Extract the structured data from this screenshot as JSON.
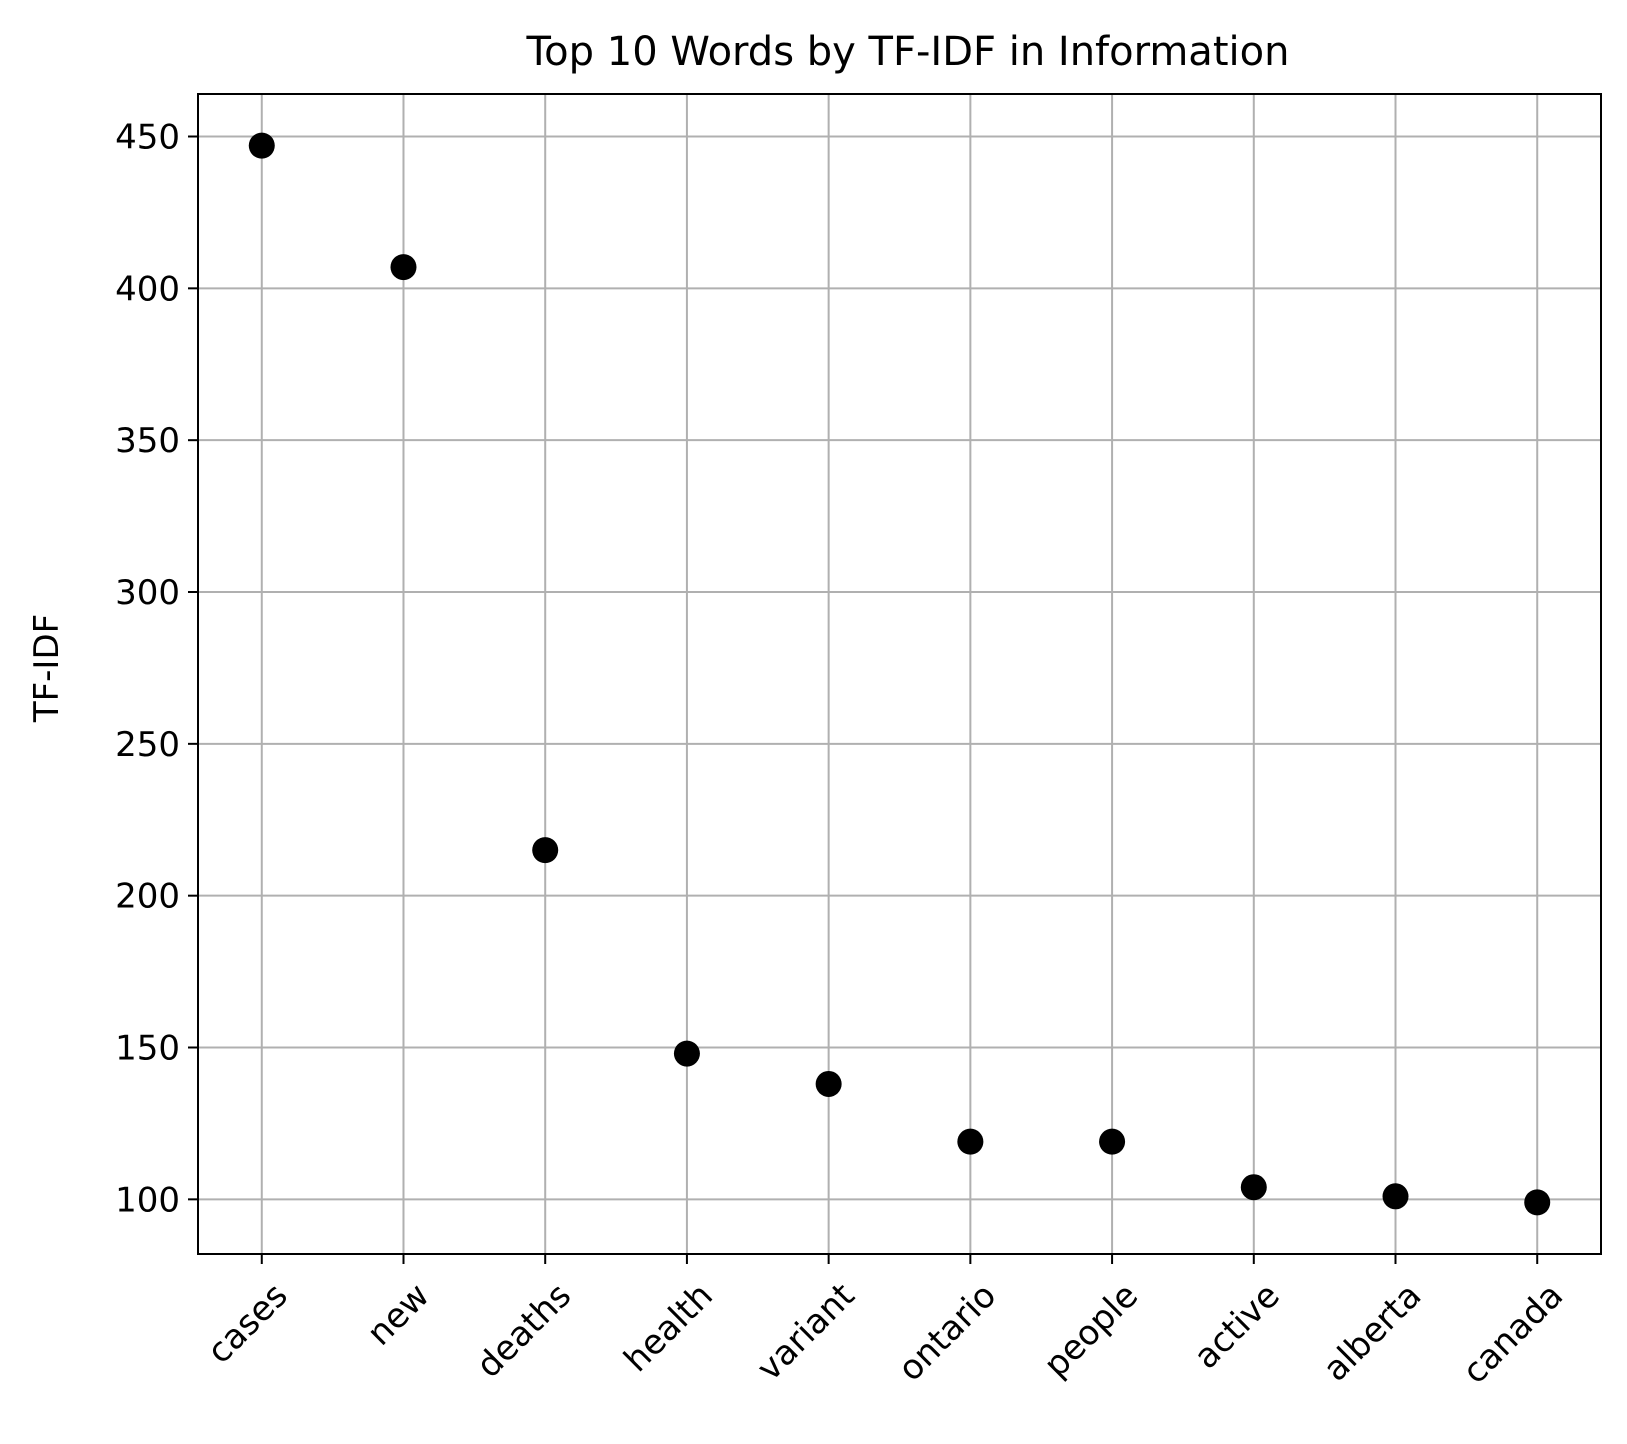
{
  "chart_data": {
    "type": "scatter",
    "title": "Top 10 Words by TF-IDF in Information",
    "xlabel": "",
    "ylabel": "TF-IDF",
    "categories": [
      "cases",
      "new",
      "deaths",
      "health",
      "variant",
      "ontario",
      "people",
      "active",
      "alberta",
      "canada"
    ],
    "values": [
      447,
      407,
      215,
      148,
      138,
      119,
      119,
      104,
      101,
      99
    ],
    "ylim": [
      82,
      464
    ],
    "yticks": [
      100,
      150,
      200,
      250,
      300,
      350,
      400,
      450
    ],
    "grid": true,
    "legend": "none",
    "marker_color": "#000000",
    "grid_color": "#b0b0b0"
  }
}
